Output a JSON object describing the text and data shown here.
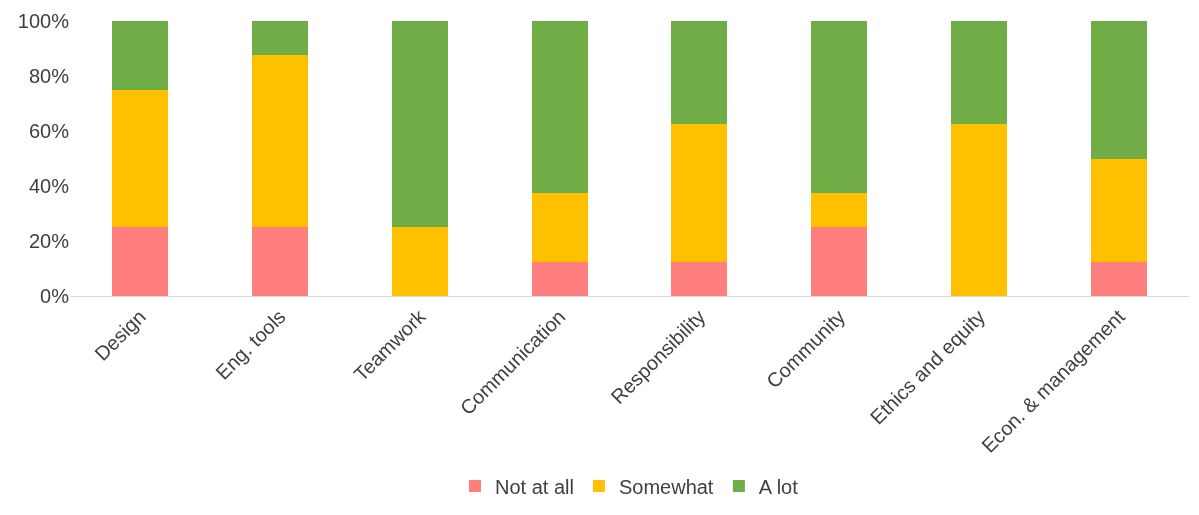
{
  "chart_data": {
    "type": "bar",
    "stacked": true,
    "categories": [
      "Design",
      "Eng. tools",
      "Teamwork",
      "Communication",
      "Responsibility",
      "Community",
      "Ethics and equity",
      "Econ. & management"
    ],
    "series": [
      {
        "name": "Not at all",
        "color": "#ff7f7f",
        "values": [
          25,
          25,
          0,
          12.5,
          12.5,
          25,
          0,
          12.5
        ]
      },
      {
        "name": "Somewhat",
        "color": "#ffc000",
        "values": [
          50,
          62.5,
          25,
          25,
          50,
          12.5,
          62.5,
          37.5
        ]
      },
      {
        "name": "A lot",
        "color": "#70ad47",
        "values": [
          25,
          12.5,
          75,
          62.5,
          37.5,
          62.5,
          37.5,
          50
        ]
      }
    ],
    "ylim": [
      0,
      100
    ],
    "yticks": [
      {
        "value": 0,
        "label": "0%"
      },
      {
        "value": 20,
        "label": "20%"
      },
      {
        "value": 40,
        "label": "40%"
      },
      {
        "value": 60,
        "label": "60%"
      },
      {
        "value": 80,
        "label": "80%"
      },
      {
        "value": 100,
        "label": "100%"
      }
    ],
    "legend": "bottom"
  }
}
